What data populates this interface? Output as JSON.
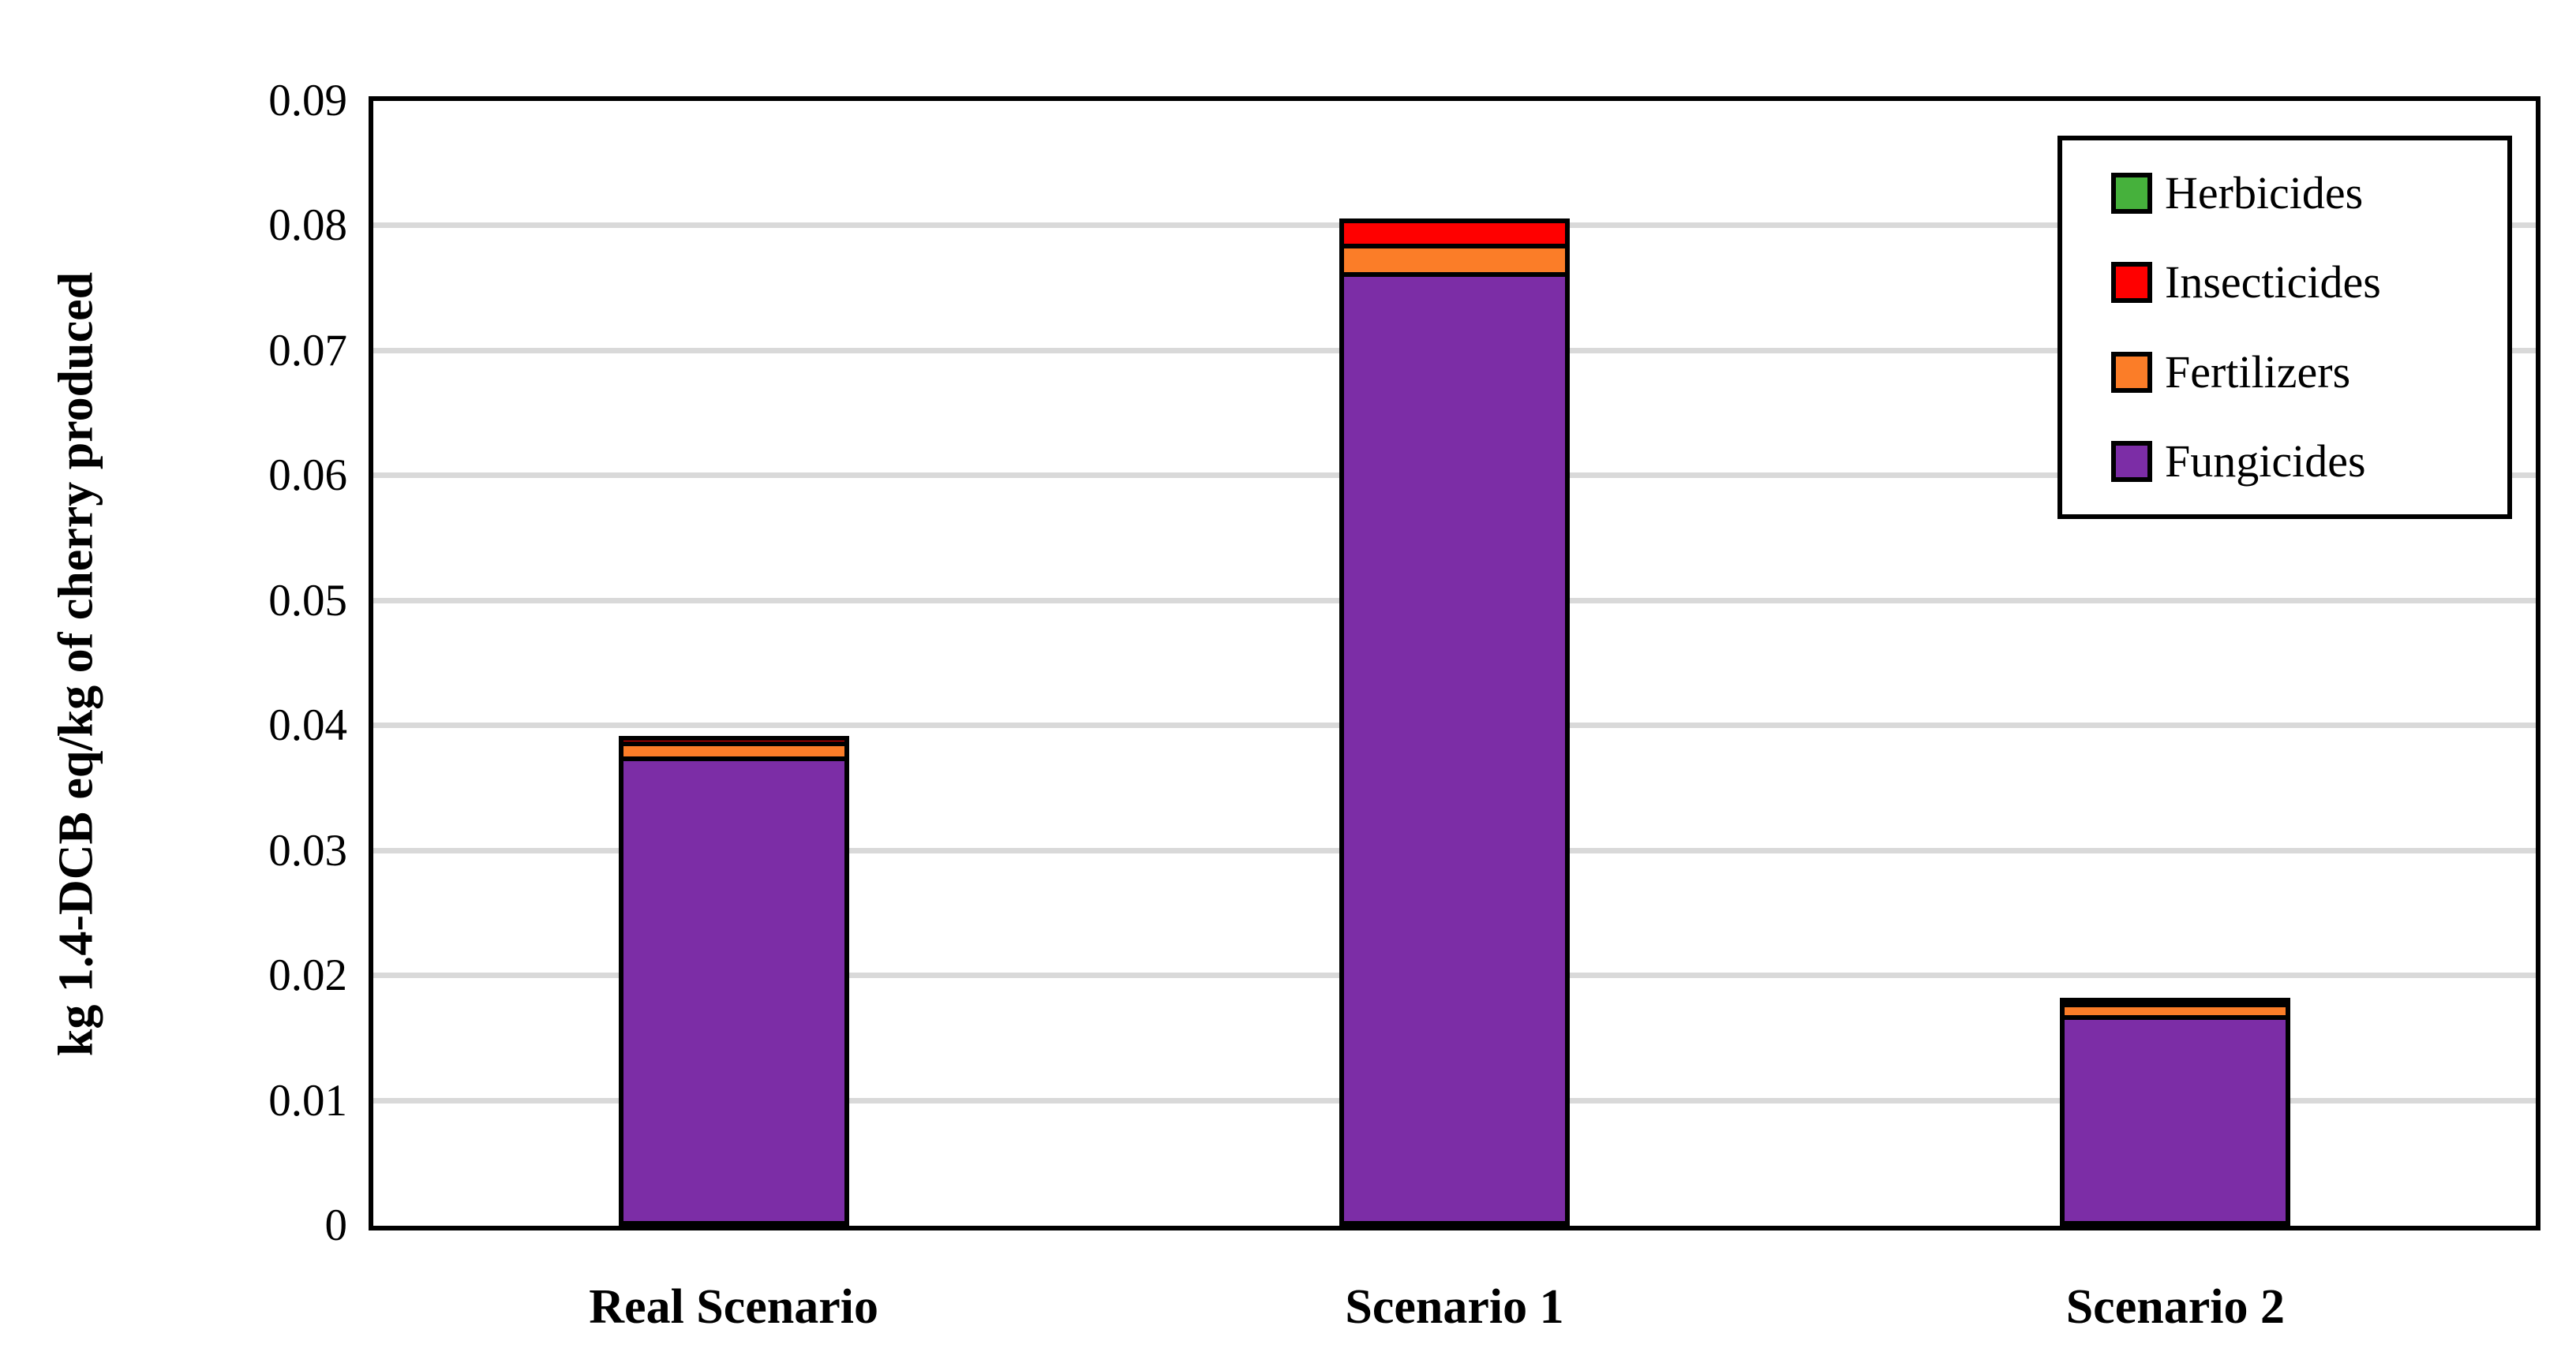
{
  "figure": {
    "background": "#FFFFFF",
    "axis_color": "#000000",
    "gridline_color": "#D9D9D9"
  },
  "chart_data": {
    "type": "bar",
    "stacked": true,
    "title": "",
    "xlabel": "",
    "ylabel": "kg 1.4-DCB eq/kg of cherry produced",
    "ylim": [
      0,
      0.09
    ],
    "ytick_interval": 0.01,
    "yticks": [
      0,
      0.01,
      0.02,
      0.03,
      0.04,
      0.05,
      0.06,
      0.07,
      0.08,
      0.09
    ],
    "ytick_labels": [
      "0",
      "0.01",
      "0.02",
      "0.03",
      "0.04",
      "0.05",
      "0.06",
      "0.07",
      "0.08",
      "0.09"
    ],
    "grid": "horizontal",
    "legend_position": "top-right",
    "categories": [
      "Real Scenario",
      "Scenario 1",
      "Scenario 2"
    ],
    "series": [
      {
        "name": "Herbicides",
        "color": "#46B13C",
        "values": [
          0,
          0,
          0
        ]
      },
      {
        "name": "Insecticides",
        "color": "#FF0000",
        "values": [
          0.0008,
          0.0024,
          0.0002
        ]
      },
      {
        "name": "Fertilizers",
        "color": "#FB7D28",
        "values": [
          0.0012,
          0.0023,
          0.001
        ]
      },
      {
        "name": "Fungicides",
        "color": "#7C2DA6",
        "values": [
          0.0372,
          0.0759,
          0.0165
        ]
      }
    ],
    "stack_order_bottom_to_top": [
      "Fungicides",
      "Fertilizers",
      "Insecticides",
      "Herbicides"
    ],
    "approx_totals": [
      0.039,
      0.0805,
      0.0177
    ]
  }
}
